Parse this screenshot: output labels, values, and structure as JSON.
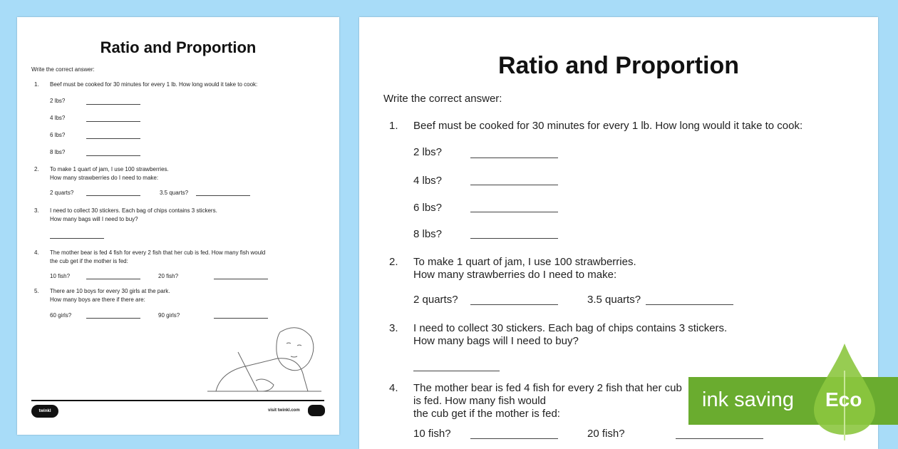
{
  "worksheet": {
    "title": "Ratio and Proportion",
    "instruction": "Write the correct answer:",
    "q1": {
      "num": "1.",
      "text": "Beef must be cooked for 30 minutes for every 1 lb. How long would it take to cook:",
      "a": "2 lbs?",
      "b": "4 lbs?",
      "c": "6 lbs?",
      "d": "8 lbs?"
    },
    "q2": {
      "num": "2.",
      "line1": "To make 1 quart of jam, I use 100 strawberries.",
      "line2": "How many strawberries do I need to make:",
      "a": "2 quarts?",
      "b": "3.5 quarts?"
    },
    "q3": {
      "num": "3.",
      "line1": "I need to collect 30 stickers. Each bag of chips contains 3 stickers.",
      "line2": "How many bags will I need to buy?"
    },
    "q4": {
      "num": "4.",
      "line1": "The mother bear is fed 4 fish for every 2 fish that her cub is fed. How many fish would",
      "line2": "the cub get if the mother is fed:",
      "a": "10 fish?",
      "b": "20 fish?"
    },
    "q5": {
      "num": "5.",
      "line1": "There are 10 boys for every 30 girls at the park.",
      "line2": "How many boys are there if there are:",
      "a": "60 girls?",
      "b": "90 girls?"
    },
    "footer": {
      "brand": "twinkl",
      "url": "visit twinkl.com"
    }
  },
  "eco_badge": {
    "label": "ink saving",
    "word": "Eco",
    "color": "#6aac2f",
    "leaf_color": "#8cc63f"
  }
}
